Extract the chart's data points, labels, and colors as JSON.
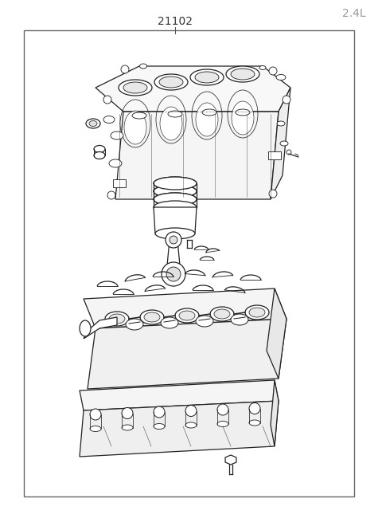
{
  "title_part_number": "21102",
  "title_engine_size": "2.4L",
  "background_color": "#ffffff",
  "line_color": "#222222",
  "fig_width": 4.8,
  "fig_height": 6.55,
  "dpi": 100
}
